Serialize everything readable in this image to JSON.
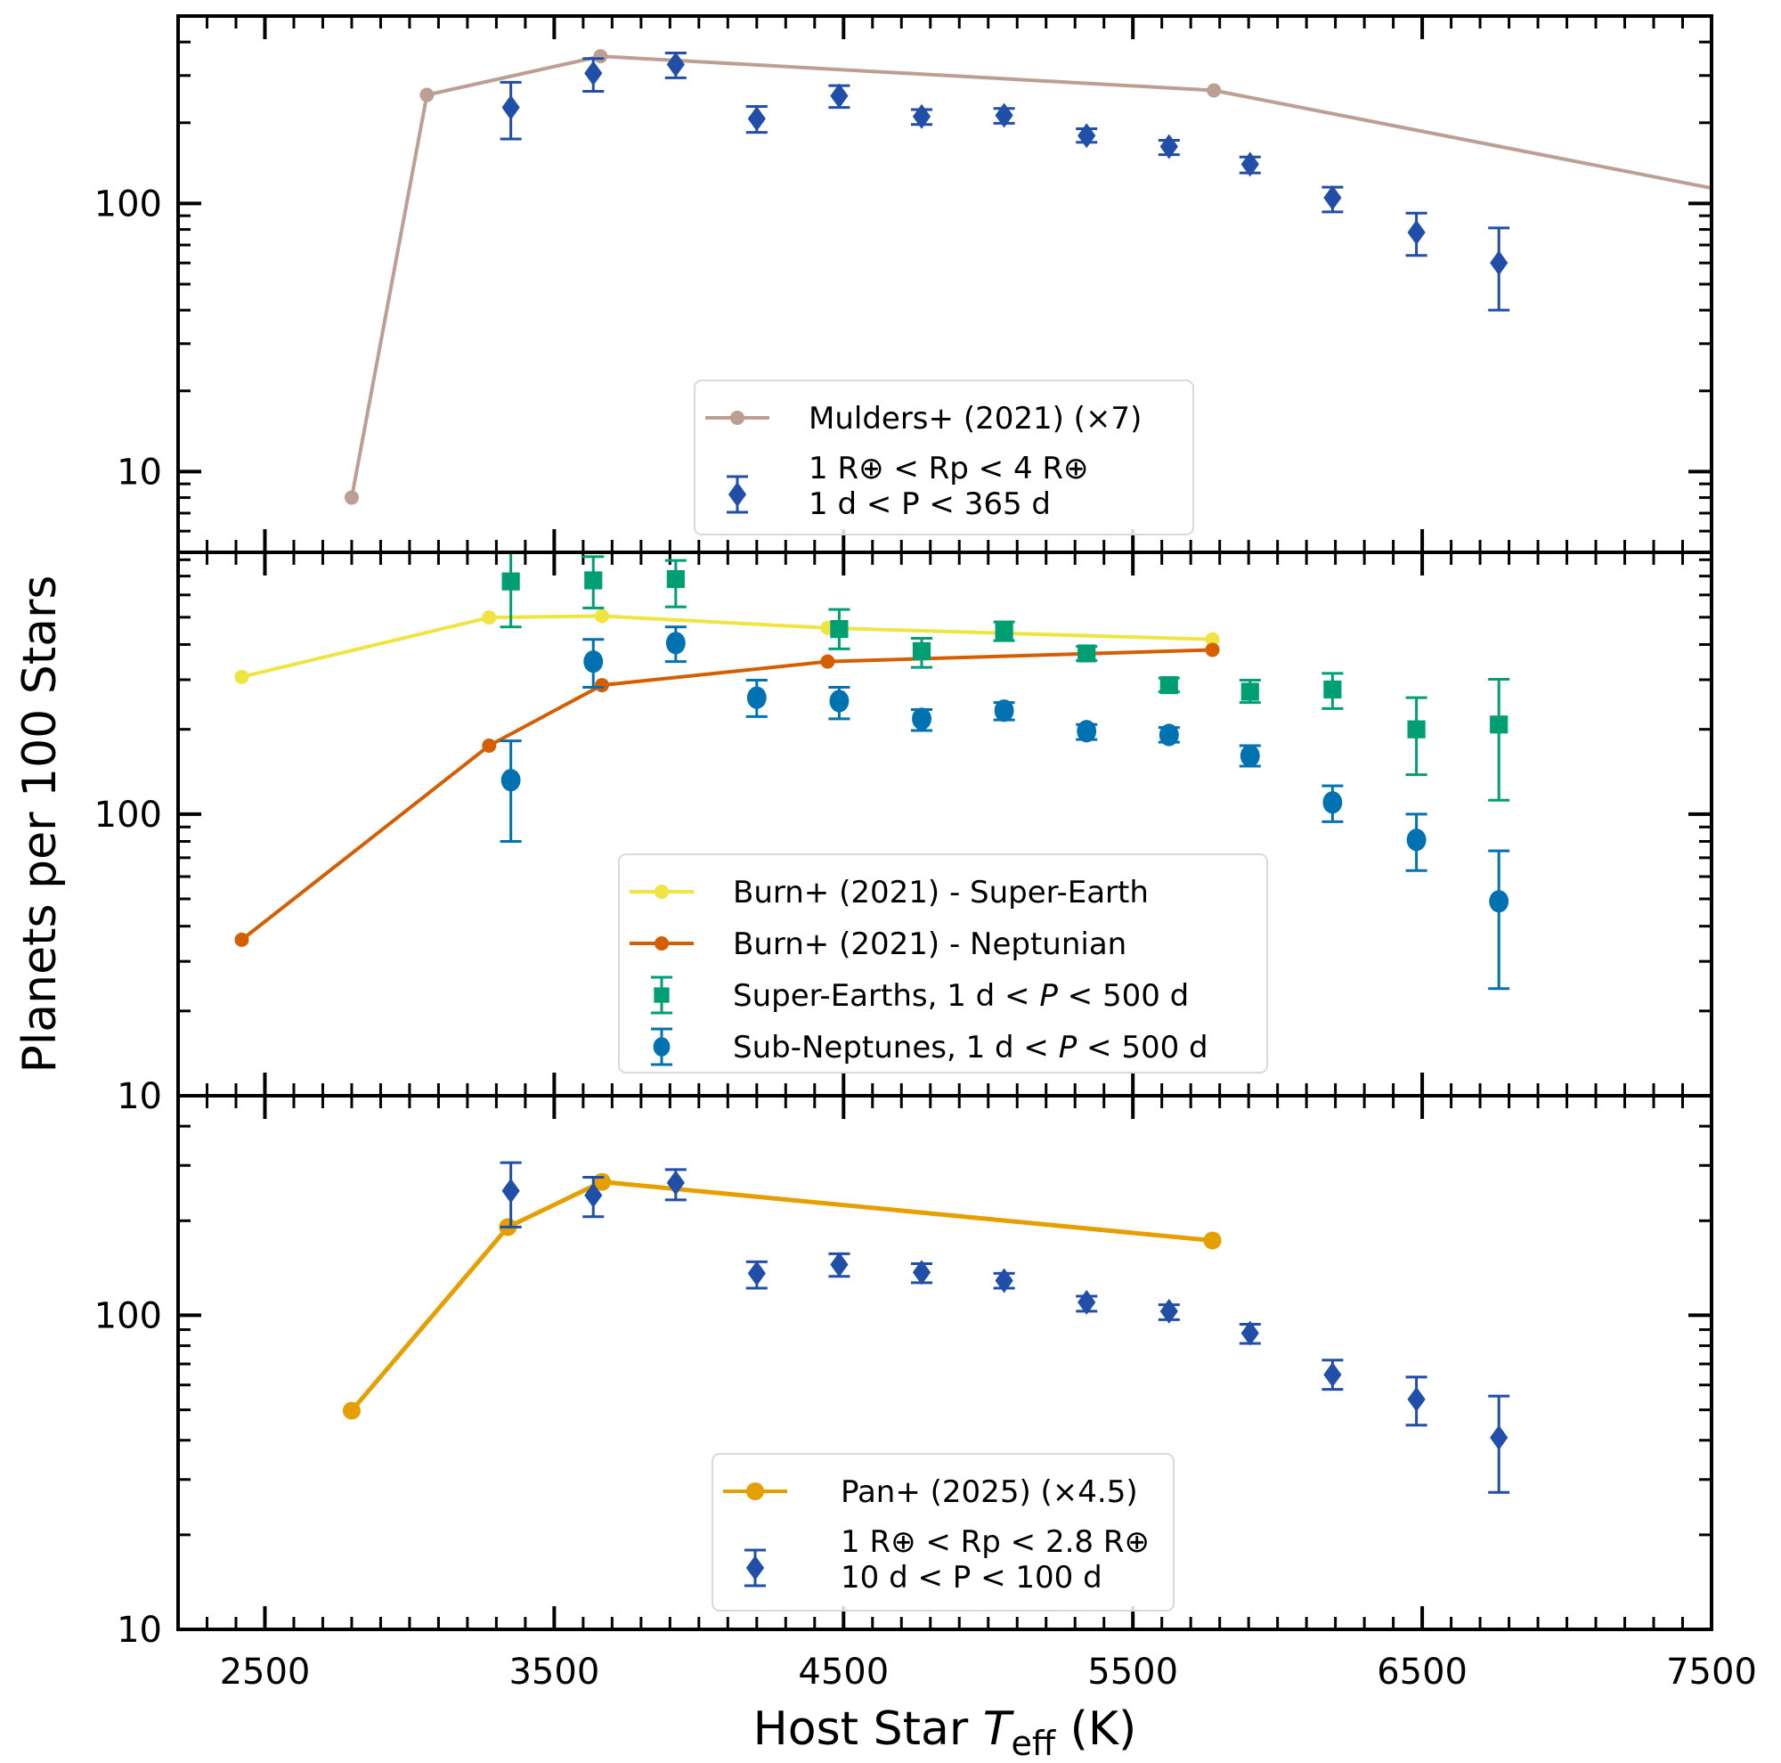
{
  "chart_data": {
    "type": "scatter",
    "xlabel": "Host Star T_eff (K)",
    "xlabel_parts": {
      "prefix": "Host Star ",
      "symbol": "T",
      "subscript": "eff",
      "suffix": " (K)"
    },
    "ylabel": "Planets per 100 Stars",
    "xlim": [
      2200,
      7500
    ],
    "x_ticks": [
      2500,
      3500,
      4500,
      5500,
      6500,
      7500
    ],
    "x_tick_labels": [
      "2500",
      "3500",
      "4500",
      "5500",
      "6500",
      "7500"
    ],
    "x_minor_step": 100,
    "yscale": "log",
    "panels": [
      {
        "id": "top",
        "ylim": [
          5,
          500
        ],
        "y_ticks": [
          10,
          100
        ],
        "y_tick_labels": [
          "10",
          "100"
        ],
        "legend": {
          "placement": "lower-center",
          "entries": [
            {
              "series": "mulders",
              "text": "Mulders+ (2021) (×7)"
            },
            {
              "series": "obs_top",
              "line1": [
                "1",
                "R",
                "⊕",
                " < ",
                "R",
                "p",
                " < 4",
                "R",
                "⊕"
              ],
              "text1": "1 R⊕ < Rp < 4 R⊕",
              "text2": "1 d < P < 365 d"
            }
          ]
        },
        "series": [
          {
            "key": "mulders",
            "name": "Mulders+ (2021) (×7)",
            "kind": "line",
            "color": "#BC9E92",
            "x": [
              2800,
              3060,
              3660,
              5780,
              7520
            ],
            "y": [
              8.0,
              254,
              354,
              264,
              113
            ]
          },
          {
            "key": "obs_top",
            "name": "1 R⊕ < Rp < 4 R⊕, 1 d < P < 365 d",
            "kind": "errorbar",
            "marker": "diamond",
            "color": "#204EA8",
            "x": [
              3350,
              3635,
              3920,
              4200,
              4485,
              4770,
              5055,
              5340,
              5625,
              5905,
              6190,
              6480,
              6765
            ],
            "y": [
              228,
              306,
              330,
              207,
              252,
              211,
              213,
              179,
              163,
              140,
              105,
              78,
              60
            ],
            "y_low": [
              174,
              262,
              294,
              184,
              228,
              197,
              199,
              169,
              152,
              130,
              93,
              64,
              40
            ],
            "y_high": [
              283,
              347,
              364,
              230,
              275,
              224,
              226,
              190,
              172,
              149,
              115,
              92,
              81
            ]
          }
        ]
      },
      {
        "id": "middle",
        "ylim": [
          10,
          850
        ],
        "y_ticks": [
          10,
          100
        ],
        "y_tick_labels": [
          "10",
          "100"
        ],
        "legend": {
          "placement": "lower-center",
          "entries": [
            {
              "series": "burn_se",
              "text": "Burn+ (2021) - Super-Earth"
            },
            {
              "series": "burn_nep",
              "text": "Burn+ (2021) - Neptunian"
            },
            {
              "series": "super_earths",
              "text_pre": "Super-Earths, 1 d < ",
              "text_sym": "P",
              "text_post": " < 500 d",
              "text": "Super-Earths, 1 d < P < 500 d"
            },
            {
              "series": "sub_neptunes",
              "text_pre": "Sub-Neptunes, 1 d < ",
              "text_sym": "P",
              "text_post": " < 500 d",
              "text": "Sub-Neptunes, 1 d < P < 500 d"
            }
          ]
        },
        "series": [
          {
            "key": "burn_se",
            "name": "Burn+ (2021) - Super-Earth",
            "kind": "line",
            "color": "#F0E442",
            "x": [
              2420,
              3275,
              3665,
              4445,
              5775
            ],
            "y": [
              307,
              499,
              505,
              458,
              417
            ]
          },
          {
            "key": "burn_nep",
            "name": "Burn+ (2021) - Neptunian",
            "kind": "line",
            "color": "#D55E00",
            "x": [
              2420,
              3275,
              3665,
              4445,
              5775
            ],
            "y": [
              35.8,
              175,
              287,
              348,
              383
            ]
          },
          {
            "key": "super_earths",
            "name": "Super-Earths, 1 d < P < 500 d",
            "kind": "errorbar",
            "marker": "square",
            "color": "#009E73",
            "x": [
              3350,
              3635,
              3920,
              4485,
              4770,
              5055,
              5340,
              5625,
              5905,
              6190,
              6480,
              6765
            ],
            "y": [
              670,
              676,
              683,
              454,
              379,
              446,
              372,
              287,
              272,
              277,
              200,
              208
            ],
            "y_low": [
              462,
              539,
              544,
              386,
              332,
              413,
              351,
              272,
              249,
              237,
              138,
              112
            ],
            "y_high": [
              876,
              820,
              795,
              533,
              421,
              481,
              394,
              304,
              299,
              316,
              259,
              301
            ]
          },
          {
            "key": "sub_neptunes",
            "name": "Sub-Neptunes, 1 d < P < 500 d",
            "kind": "errorbar",
            "marker": "circle",
            "color": "#0072B2",
            "x": [
              3350,
              3635,
              3920,
              4200,
              4485,
              4770,
              5055,
              5340,
              5625,
              5905,
              6190,
              6480,
              6765
            ],
            "y": [
              132,
              348,
              405,
              259,
              252,
              218,
              233,
              197,
              191,
              161,
              110,
              81,
              49
            ],
            "y_low": [
              80,
              282,
              348,
              222,
              218,
              198,
              216,
              184,
              180,
              148,
              94,
              63,
              24
            ],
            "y_high": [
              182,
              417,
              462,
              299,
              282,
              235,
              249,
              208,
              203,
              175,
              126,
              100,
              74
            ]
          }
        ]
      },
      {
        "id": "bottom",
        "ylim": [
          10,
          500
        ],
        "y_ticks": [
          10,
          100
        ],
        "y_tick_labels": [
          "10",
          "100"
        ],
        "legend": {
          "placement": "lower-center",
          "entries": [
            {
              "series": "pan",
              "text": "Pan+ (2025) (×4.5)"
            },
            {
              "series": "obs_bottom",
              "text1": "1 R⊕ < Rp < 2.8 R⊕",
              "text2": "10 d < P < 100 d"
            }
          ]
        },
        "series": [
          {
            "key": "pan",
            "name": "Pan+ (2025) (×4.5)",
            "kind": "line",
            "color": "#E69F00",
            "x": [
              2800,
              3340,
              3665,
              5775
            ],
            "y": [
              49.7,
              191,
              266,
              173
            ]
          },
          {
            "key": "obs_bottom",
            "name": "1 R⊕ < Rp < 2.8 R⊕, 10 d < P < 100 d",
            "kind": "errorbar",
            "marker": "diamond",
            "color": "#204EA8",
            "x": [
              3350,
              3635,
              3920,
              4200,
              4485,
              4770,
              5055,
              5340,
              5625,
              5905,
              6190,
              6480,
              6765
            ],
            "y": [
              249,
              241,
              264,
              136,
              145,
              137,
              129,
              110,
              103,
              87.7,
              64.7,
              54,
              40.8
            ],
            "y_low": [
              191,
              206,
              233,
              122,
              133,
              127,
              122,
              103,
              96.8,
              81.4,
              58.1,
              44.7,
              27.3
            ],
            "y_high": [
              306,
              275,
              291,
              148,
              157,
              146,
              136,
              115,
              108,
              93.6,
              72,
              63.6,
              55.3
            ]
          }
        ]
      }
    ]
  }
}
